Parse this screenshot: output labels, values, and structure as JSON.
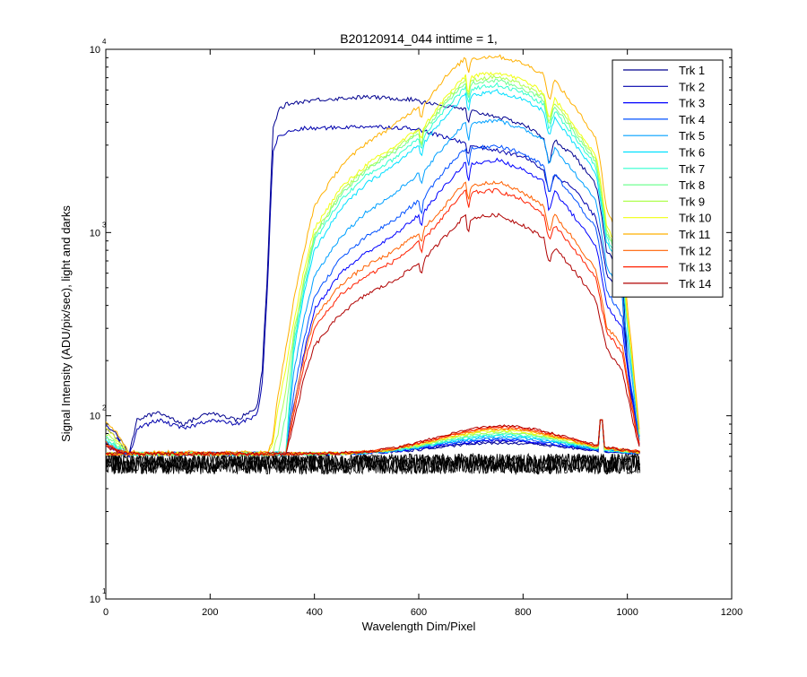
{
  "chart_data": {
    "type": "line",
    "title": "B20120914_044 inttime = 1,",
    "xlabel": "Wavelength Dim/Pixel",
    "ylabel": "Signal Intensity (ADU/pix/sec), light and darks",
    "xlim": [
      0,
      1200
    ],
    "ylim": [
      10,
      10000
    ],
    "yscale": "log",
    "grid": false,
    "legend_position": "top-right",
    "x_ticks": [
      "0",
      "200",
      "400",
      "600",
      "800",
      "1000",
      "1200"
    ],
    "y_ticks": [
      {
        "base": "10",
        "exp": "1",
        "value": 10
      },
      {
        "base": "10",
        "exp": "2",
        "value": 100
      },
      {
        "base": "10",
        "exp": "3",
        "value": 1000
      },
      {
        "base": "10",
        "exp": "4",
        "value": 10000
      }
    ],
    "x": [
      0,
      20,
      45,
      60,
      100,
      150,
      200,
      250,
      290,
      300,
      310,
      320,
      330,
      345,
      360,
      380,
      400,
      450,
      500,
      550,
      600,
      605,
      610,
      650,
      690,
      695,
      700,
      750,
      800,
      840,
      850,
      860,
      900,
      940,
      950,
      960,
      990,
      1000,
      1010,
      1025
    ],
    "series": [
      {
        "name": "Trk 1",
        "color": "#00008f",
        "values": [
          90,
          80,
          62,
          95,
          105,
          90,
          105,
          95,
          110,
          180,
          600,
          3600,
          4600,
          5000,
          5100,
          5200,
          5300,
          5400,
          5500,
          5400,
          5300,
          5100,
          5200,
          4900,
          4700,
          3800,
          4600,
          4300,
          3900,
          3300,
          2300,
          3200,
          2600,
          1800,
          1300,
          800,
          600,
          200,
          120,
          70
        ]
      },
      {
        "name": "Trk 2",
        "color": "#0000ad",
        "values": [
          85,
          75,
          60,
          85,
          95,
          85,
          95,
          90,
          100,
          150,
          500,
          2700,
          3300,
          3500,
          3600,
          3700,
          3700,
          3750,
          3800,
          3750,
          3700,
          3500,
          3600,
          3300,
          3100,
          2600,
          3000,
          2800,
          2600,
          2200,
          1600,
          2100,
          1700,
          1200,
          900,
          600,
          450,
          180,
          110,
          65
        ]
      },
      {
        "name": "Trk 3",
        "color": "#0000ff",
        "values": [
          70,
          65,
          62,
          62,
          62,
          62,
          62,
          62,
          62,
          62,
          62,
          62,
          62,
          62,
          110,
          220,
          380,
          600,
          780,
          950,
          1250,
          1050,
          1300,
          1800,
          2400,
          1850,
          2350,
          2500,
          2200,
          1900,
          1300,
          1700,
          1200,
          850,
          600,
          400,
          300,
          180,
          120,
          65
        ]
      },
      {
        "name": "Trk 4",
        "color": "#0050ff",
        "values": [
          70,
          65,
          62,
          62,
          62,
          62,
          62,
          62,
          62,
          62,
          62,
          62,
          62,
          62,
          130,
          260,
          450,
          720,
          950,
          1150,
          1500,
          1250,
          1550,
          2200,
          2900,
          2250,
          2850,
          3000,
          2700,
          2300,
          1600,
          2100,
          1500,
          1050,
          720,
          480,
          350,
          200,
          130,
          65
        ]
      },
      {
        "name": "Trk 5",
        "color": "#00a0ff",
        "values": [
          72,
          66,
          62,
          62,
          62,
          62,
          62,
          62,
          62,
          62,
          62,
          62,
          62,
          62,
          170,
          340,
          580,
          950,
          1300,
          1600,
          2100,
          1750,
          2150,
          3000,
          4000,
          3100,
          3900,
          4100,
          3700,
          3200,
          2300,
          2900,
          2100,
          1500,
          1000,
          650,
          450,
          250,
          150,
          68
        ]
      },
      {
        "name": "Trk 6",
        "color": "#00e0ff",
        "values": [
          74,
          67,
          62,
          62,
          62,
          62,
          62,
          62,
          62,
          62,
          62,
          62,
          62,
          62,
          220,
          460,
          800,
          1350,
          1850,
          2300,
          3000,
          2500,
          3100,
          4300,
          5700,
          4400,
          5600,
          5900,
          5300,
          4600,
          3300,
          4200,
          3000,
          2100,
          1400,
          900,
          600,
          300,
          170,
          70
        ]
      },
      {
        "name": "Trk 7",
        "color": "#30ffd0",
        "values": [
          76,
          68,
          62,
          62,
          62,
          62,
          62,
          62,
          62,
          62,
          62,
          62,
          62,
          62,
          240,
          500,
          900,
          1500,
          2050,
          2500,
          3300,
          2750,
          3400,
          4700,
          6200,
          4800,
          6100,
          6400,
          5800,
          5000,
          3600,
          4600,
          3300,
          2300,
          1500,
          950,
          640,
          320,
          180,
          70
        ]
      },
      {
        "name": "Trk 8",
        "color": "#70ff90",
        "values": [
          78,
          70,
          62,
          62,
          62,
          62,
          62,
          62,
          62,
          62,
          62,
          62,
          62,
          100,
          260,
          540,
          950,
          1600,
          2200,
          2700,
          3500,
          2900,
          3600,
          5000,
          6600,
          5100,
          6500,
          6800,
          6100,
          5300,
          3800,
          4900,
          3500,
          2400,
          1600,
          1000,
          660,
          330,
          180,
          70
        ]
      },
      {
        "name": "Trk 9",
        "color": "#b0ff50",
        "values": [
          80,
          72,
          62,
          62,
          62,
          62,
          62,
          62,
          62,
          62,
          62,
          62,
          80,
          140,
          280,
          560,
          980,
          1650,
          2250,
          2800,
          3600,
          3000,
          3700,
          5200,
          6900,
          5300,
          6800,
          7100,
          6400,
          5500,
          3900,
          5100,
          3600,
          2500,
          1700,
          1050,
          700,
          340,
          185,
          70
        ]
      },
      {
        "name": "Trk 10",
        "color": "#f0ff10",
        "values": [
          85,
          75,
          62,
          62,
          62,
          62,
          62,
          62,
          62,
          62,
          62,
          70,
          110,
          180,
          320,
          620,
          1050,
          1750,
          2350,
          2900,
          3700,
          3100,
          3800,
          5400,
          7200,
          5500,
          7100,
          7500,
          6800,
          5800,
          4100,
          5400,
          3800,
          2600,
          1800,
          1100,
          730,
          350,
          190,
          70
        ]
      },
      {
        "name": "Trk 11",
        "color": "#ffb000",
        "values": [
          95,
          82,
          64,
          63,
          63,
          63,
          63,
          63,
          63,
          63,
          63,
          75,
          130,
          230,
          420,
          800,
          1400,
          2300,
          3100,
          3800,
          4900,
          4100,
          5000,
          7000,
          9000,
          7200,
          8900,
          9200,
          8400,
          7300,
          5200,
          6800,
          4800,
          3300,
          2200,
          1350,
          870,
          400,
          210,
          72
        ]
      },
      {
        "name": "Trk 12",
        "color": "#ff6000",
        "values": [
          72,
          66,
          62,
          62,
          62,
          62,
          62,
          62,
          62,
          62,
          62,
          62,
          62,
          62,
          110,
          210,
          340,
          520,
          660,
          780,
          1000,
          850,
          1050,
          1400,
          1900,
          1450,
          1800,
          1900,
          1650,
          1400,
          1000,
          1250,
          900,
          620,
          440,
          310,
          240,
          160,
          110,
          66
        ]
      },
      {
        "name": "Trk 13",
        "color": "#ff2000",
        "values": [
          70,
          65,
          62,
          62,
          62,
          62,
          62,
          62,
          62,
          62,
          62,
          62,
          62,
          62,
          100,
          190,
          300,
          460,
          580,
          690,
          880,
          750,
          920,
          1250,
          1700,
          1300,
          1650,
          1700,
          1500,
          1250,
          900,
          1100,
          800,
          560,
          400,
          290,
          220,
          150,
          105,
          65
        ]
      },
      {
        "name": "Trk 14",
        "color": "#b00000",
        "values": [
          68,
          64,
          62,
          62,
          62,
          62,
          62,
          62,
          62,
          62,
          62,
          62,
          62,
          62,
          90,
          160,
          240,
          360,
          460,
          540,
          680,
          580,
          710,
          950,
          1250,
          960,
          1200,
          1250,
          1100,
          930,
          680,
          830,
          610,
          430,
          310,
          230,
          180,
          130,
          95,
          64
        ]
      }
    ],
    "darks": {
      "color": "#000000",
      "x_range": [
        0,
        1025
      ],
      "y_band": [
        48,
        62
      ],
      "lit_bump_peak": 88,
      "lit_bump_center": 760
    }
  }
}
